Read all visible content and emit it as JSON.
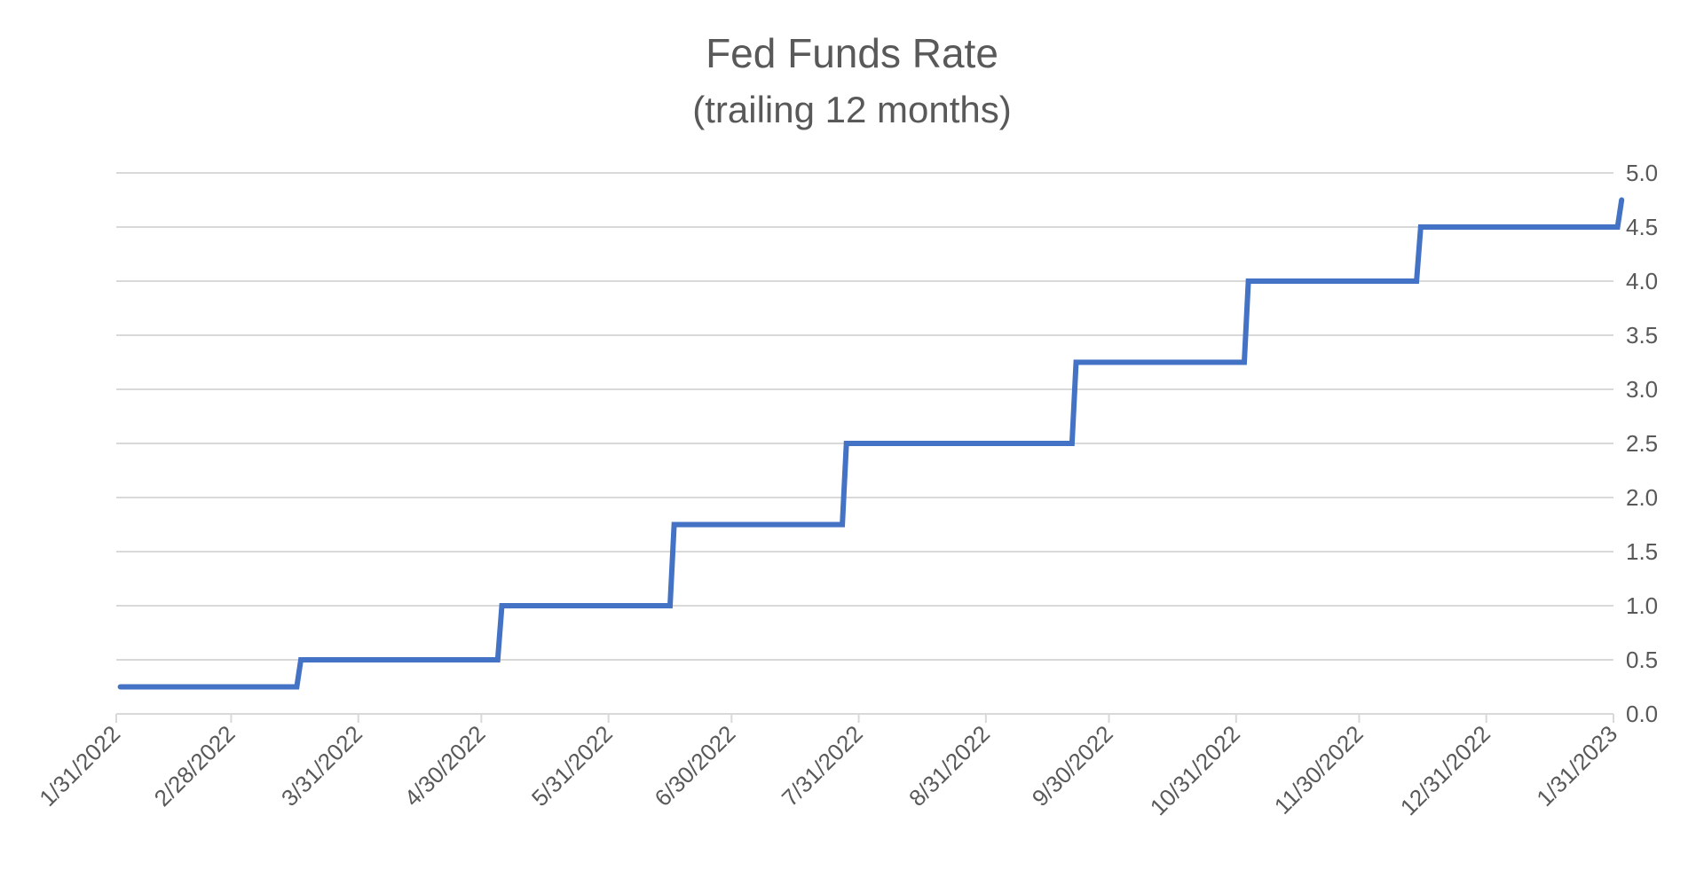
{
  "chart_data": {
    "type": "line",
    "title": "Fed Funds Rate",
    "subtitle": "(trailing 12 months)",
    "xlabel": "",
    "ylabel": "",
    "x_tick_labels": [
      "1/31/2022",
      "2/28/2022",
      "3/31/2022",
      "4/30/2022",
      "5/31/2022",
      "6/30/2022",
      "7/31/2022",
      "8/31/2022",
      "9/30/2022",
      "10/31/2022",
      "11/30/2022",
      "12/31/2022",
      "1/31/2023"
    ],
    "y_tick_labels": [
      "0.0",
      "0.5",
      "1.0",
      "1.5",
      "2.0",
      "2.5",
      "3.0",
      "3.5",
      "4.0",
      "4.5",
      "5.0"
    ],
    "ylim": [
      0,
      5
    ],
    "xlim": [
      "2022-01-31",
      "2023-01-31"
    ],
    "y_axis_position": "right",
    "grid": true,
    "legend": "none",
    "line_style": "step",
    "series": [
      {
        "color": "#4472c4",
        "points": [
          {
            "x": "2022-02-01",
            "y": 0.25
          },
          {
            "x": "2022-03-16",
            "y": 0.25
          },
          {
            "x": "2022-03-17",
            "y": 0.5
          },
          {
            "x": "2022-05-04",
            "y": 0.5
          },
          {
            "x": "2022-05-05",
            "y": 1.0
          },
          {
            "x": "2022-06-15",
            "y": 1.0
          },
          {
            "x": "2022-06-16",
            "y": 1.75
          },
          {
            "x": "2022-07-27",
            "y": 1.75
          },
          {
            "x": "2022-07-28",
            "y": 2.5
          },
          {
            "x": "2022-09-21",
            "y": 2.5
          },
          {
            "x": "2022-09-22",
            "y": 3.25
          },
          {
            "x": "2022-11-02",
            "y": 3.25
          },
          {
            "x": "2022-11-03",
            "y": 4.0
          },
          {
            "x": "2022-12-14",
            "y": 4.0
          },
          {
            "x": "2022-12-15",
            "y": 4.5
          },
          {
            "x": "2023-02-01",
            "y": 4.5
          },
          {
            "x": "2023-02-02",
            "y": 4.75
          }
        ]
      }
    ]
  }
}
